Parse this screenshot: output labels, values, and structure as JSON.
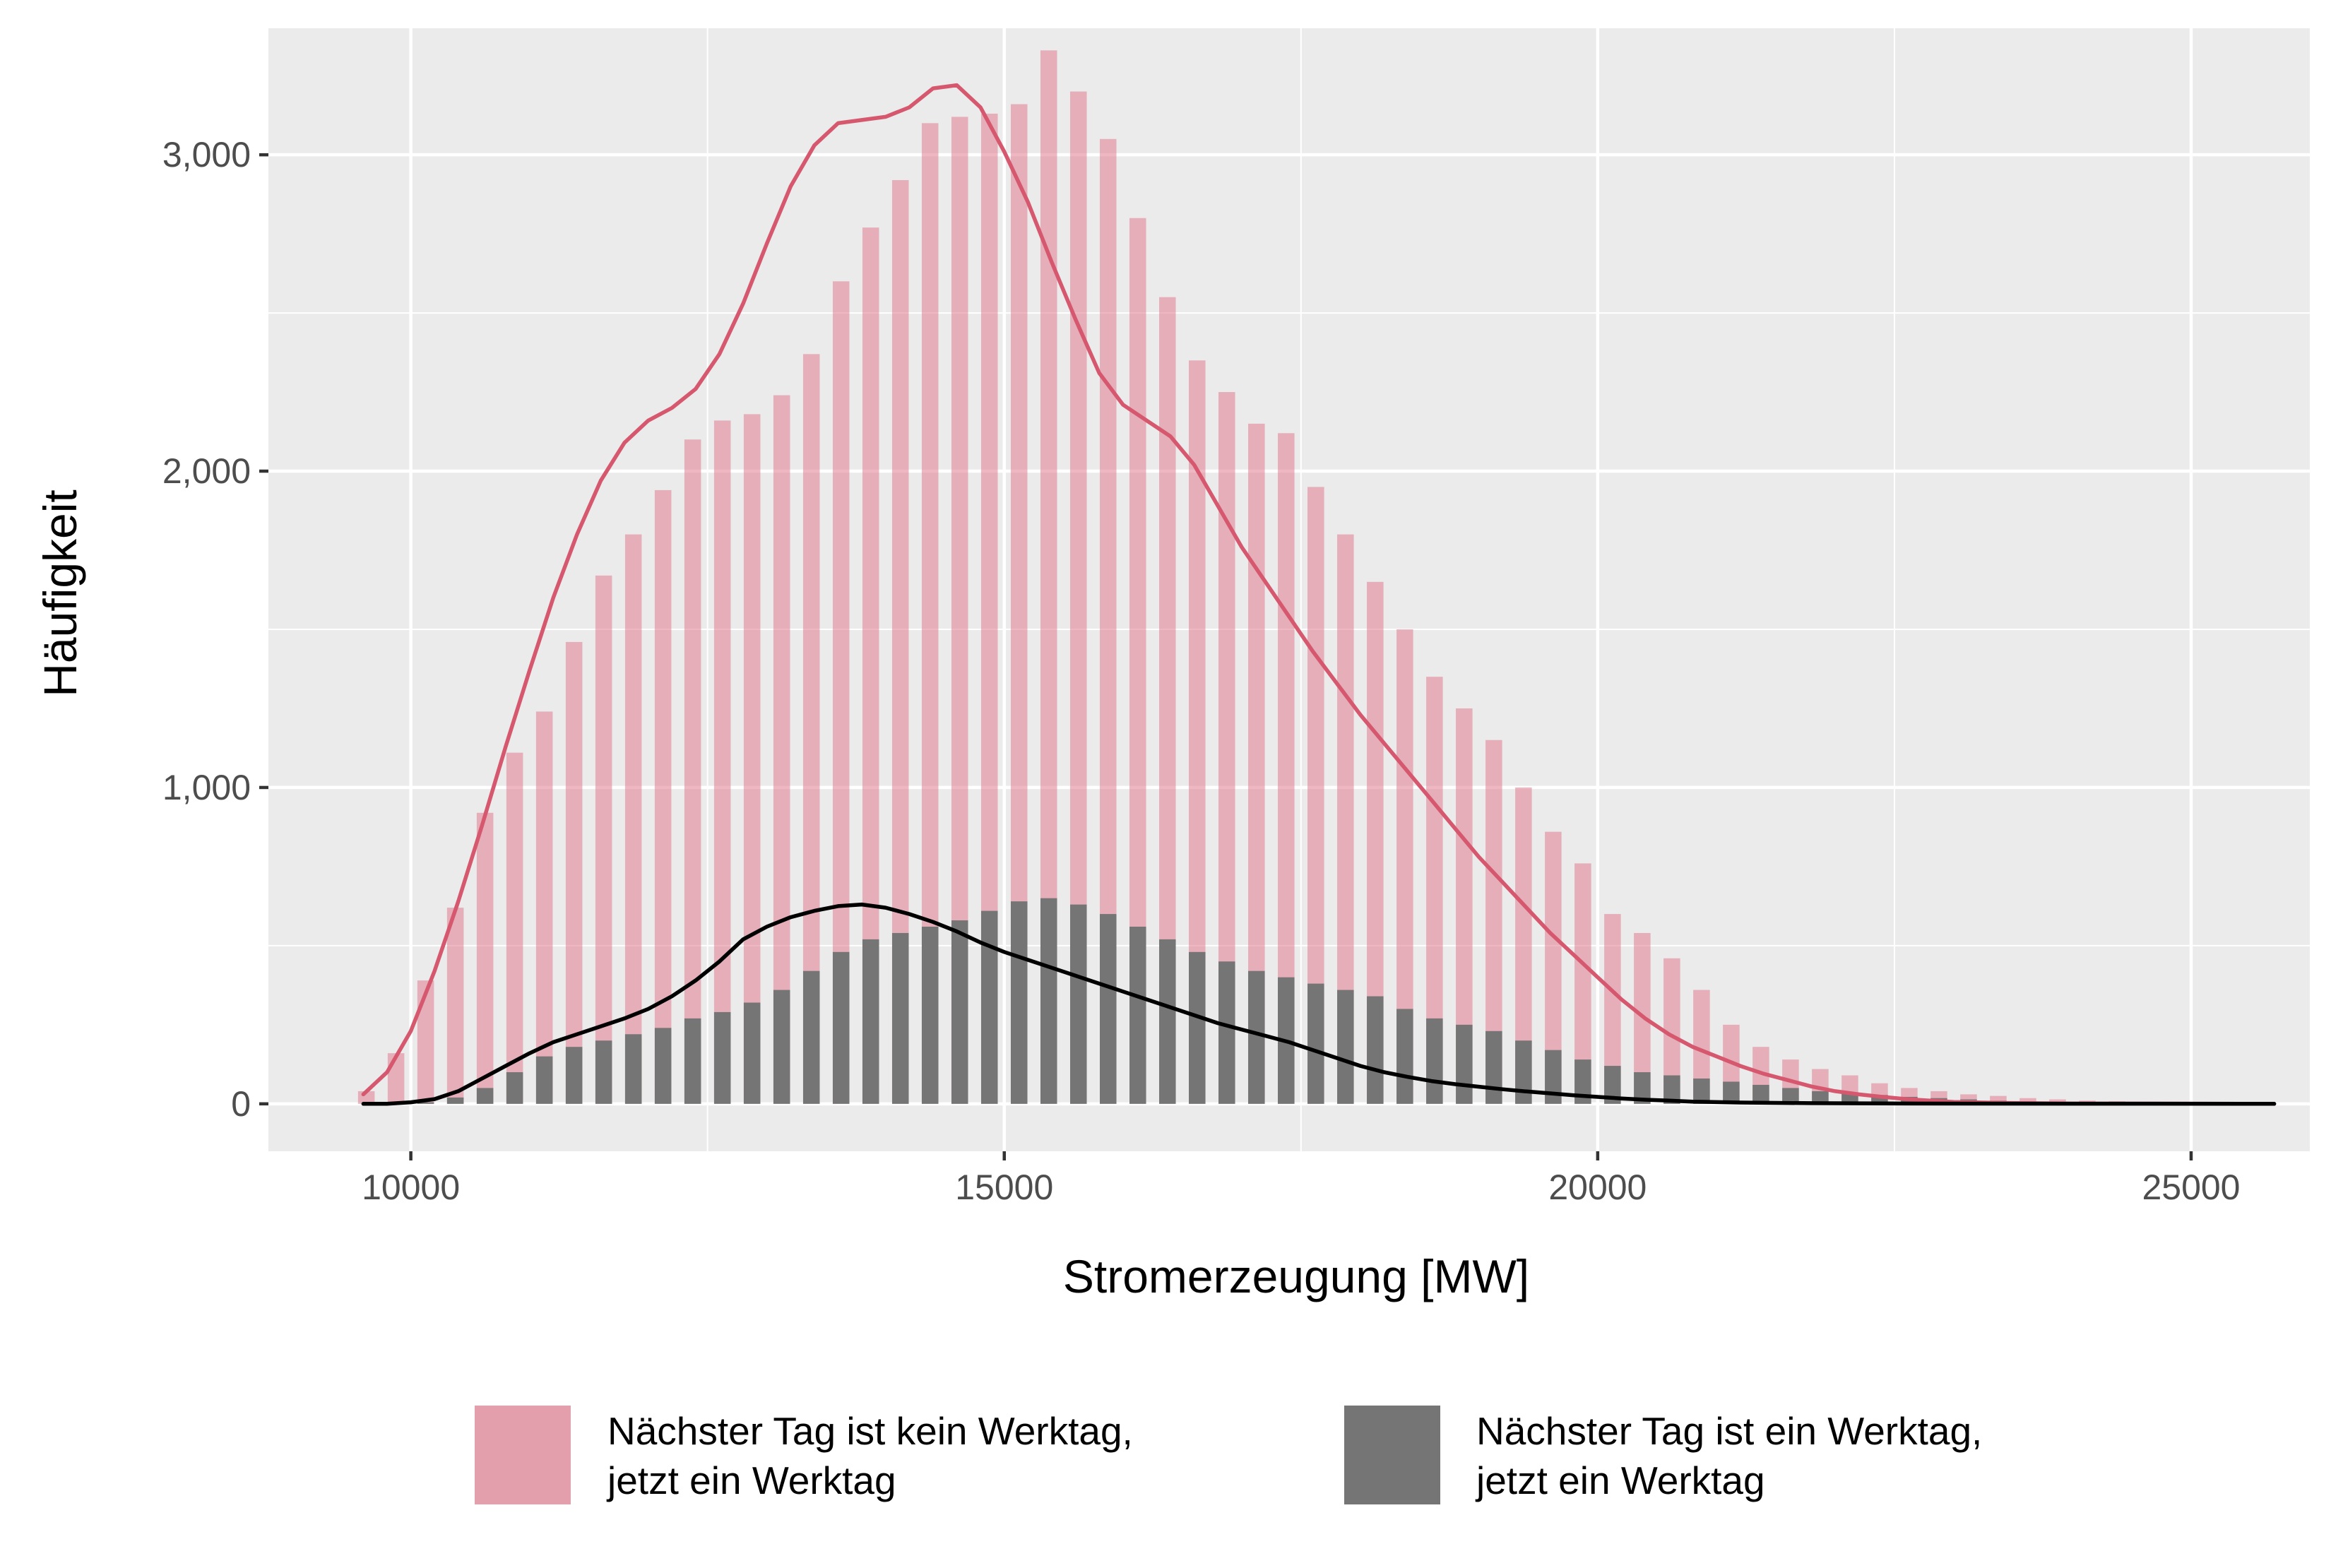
{
  "chart_data": {
    "type": "bar",
    "title": "",
    "xlabel": "Stromerzeugung [MW]",
    "ylabel": "Häufigkeit",
    "xlim": [
      8800,
      26000
    ],
    "ylim": [
      -150,
      3400
    ],
    "x_ticks": [
      {
        "value": 10000,
        "label": "10000"
      },
      {
        "value": 15000,
        "label": "15000"
      },
      {
        "value": 20000,
        "label": "20000"
      },
      {
        "value": 25000,
        "label": "25000"
      }
    ],
    "y_ticks": [
      {
        "value": 0,
        "label": "0"
      },
      {
        "value": 1000,
        "label": "1,000"
      },
      {
        "value": 2000,
        "label": "2,000"
      },
      {
        "value": 3000,
        "label": "3,000"
      }
    ],
    "grid": true,
    "legend_position": "bottom",
    "bin_width": 250,
    "x": [
      9625,
      9875,
      10125,
      10375,
      10625,
      10875,
      11125,
      11375,
      11625,
      11875,
      12125,
      12375,
      12625,
      12875,
      13125,
      13375,
      13625,
      13875,
      14125,
      14375,
      14625,
      14875,
      15125,
      15375,
      15625,
      15875,
      16125,
      16375,
      16625,
      16875,
      17125,
      17375,
      17625,
      17875,
      18125,
      18375,
      18625,
      18875,
      19125,
      19375,
      19625,
      19875,
      20125,
      20375,
      20625,
      20875,
      21125,
      21375,
      21625,
      21875,
      22125,
      22375,
      22625,
      22875,
      23125,
      23375,
      23625,
      23875,
      24125,
      24375,
      24625,
      24875,
      25125,
      25375
    ],
    "series": [
      {
        "name": "Nächster Tag ist kein Werktag, jetzt ein Werktag",
        "color": "#e07b8f",
        "values": [
          40,
          160,
          390,
          620,
          920,
          1110,
          1240,
          1460,
          1670,
          1800,
          1940,
          2100,
          2160,
          2180,
          2240,
          2370,
          2600,
          2770,
          2920,
          3100,
          3120,
          3130,
          3160,
          3330,
          3200,
          3050,
          2800,
          2550,
          2350,
          2250,
          2150,
          2120,
          1950,
          1800,
          1650,
          1500,
          1350,
          1250,
          1150,
          1000,
          860,
          760,
          600,
          540,
          460,
          360,
          250,
          180,
          140,
          110,
          90,
          65,
          50,
          40,
          30,
          25,
          18,
          14,
          10,
          8,
          6,
          5,
          4,
          3
        ]
      },
      {
        "name": "Nächster Tag ist ein Werktag, jetzt ein Werktag",
        "color": "#757575",
        "values": [
          0,
          0,
          5,
          20,
          50,
          100,
          150,
          180,
          200,
          220,
          240,
          270,
          290,
          320,
          360,
          420,
          480,
          520,
          540,
          560,
          580,
          610,
          640,
          650,
          630,
          600,
          560,
          520,
          480,
          450,
          420,
          400,
          380,
          360,
          340,
          300,
          270,
          250,
          230,
          200,
          170,
          140,
          120,
          100,
          90,
          80,
          70,
          60,
          50,
          40,
          35,
          28,
          22,
          18,
          14,
          10,
          8,
          6,
          5,
          4,
          3,
          2,
          1,
          1
        ]
      }
    ],
    "density_curves": [
      {
        "series": "Nächster Tag ist kein Werktag, jetzt ein Werktag",
        "color": "#d6586f",
        "points": [
          [
            9600,
            30
          ],
          [
            9800,
            100
          ],
          [
            10000,
            230
          ],
          [
            10200,
            420
          ],
          [
            10400,
            640
          ],
          [
            10600,
            880
          ],
          [
            10800,
            1130
          ],
          [
            11000,
            1370
          ],
          [
            11200,
            1600
          ],
          [
            11400,
            1800
          ],
          [
            11600,
            1970
          ],
          [
            11800,
            2090
          ],
          [
            12000,
            2160
          ],
          [
            12200,
            2200
          ],
          [
            12400,
            2260
          ],
          [
            12600,
            2370
          ],
          [
            12800,
            2530
          ],
          [
            13000,
            2720
          ],
          [
            13200,
            2900
          ],
          [
            13400,
            3030
          ],
          [
            13600,
            3100
          ],
          [
            13800,
            3110
          ],
          [
            14000,
            3120
          ],
          [
            14200,
            3150
          ],
          [
            14400,
            3210
          ],
          [
            14600,
            3220
          ],
          [
            14800,
            3150
          ],
          [
            15000,
            3010
          ],
          [
            15200,
            2850
          ],
          [
            15400,
            2660
          ],
          [
            15600,
            2480
          ],
          [
            15800,
            2310
          ],
          [
            16000,
            2210
          ],
          [
            16200,
            2160
          ],
          [
            16400,
            2110
          ],
          [
            16600,
            2020
          ],
          [
            16800,
            1890
          ],
          [
            17000,
            1760
          ],
          [
            17200,
            1650
          ],
          [
            17400,
            1540
          ],
          [
            17600,
            1430
          ],
          [
            17800,
            1330
          ],
          [
            18000,
            1230
          ],
          [
            18200,
            1140
          ],
          [
            18400,
            1050
          ],
          [
            18600,
            960
          ],
          [
            18800,
            870
          ],
          [
            19000,
            780
          ],
          [
            19200,
            700
          ],
          [
            19400,
            620
          ],
          [
            19600,
            540
          ],
          [
            19800,
            470
          ],
          [
            20000,
            400
          ],
          [
            20200,
            330
          ],
          [
            20400,
            270
          ],
          [
            20600,
            220
          ],
          [
            20800,
            180
          ],
          [
            21000,
            150
          ],
          [
            21200,
            120
          ],
          [
            21400,
            95
          ],
          [
            21600,
            75
          ],
          [
            21800,
            55
          ],
          [
            22000,
            40
          ],
          [
            22200,
            30
          ],
          [
            22400,
            22
          ],
          [
            22600,
            15
          ],
          [
            22800,
            10
          ],
          [
            23000,
            6
          ],
          [
            23400,
            3
          ],
          [
            24000,
            1
          ],
          [
            25700,
            0
          ]
        ]
      },
      {
        "series": "Nächster Tag ist ein Werktag, jetzt ein Werktag",
        "color": "#000000",
        "points": [
          [
            9600,
            0
          ],
          [
            9800,
            0
          ],
          [
            10000,
            5
          ],
          [
            10200,
            15
          ],
          [
            10400,
            40
          ],
          [
            10600,
            80
          ],
          [
            10800,
            120
          ],
          [
            11000,
            160
          ],
          [
            11200,
            195
          ],
          [
            11400,
            220
          ],
          [
            11600,
            245
          ],
          [
            11800,
            270
          ],
          [
            12000,
            300
          ],
          [
            12200,
            340
          ],
          [
            12400,
            390
          ],
          [
            12600,
            450
          ],
          [
            12800,
            520
          ],
          [
            13000,
            560
          ],
          [
            13200,
            590
          ],
          [
            13400,
            610
          ],
          [
            13600,
            625
          ],
          [
            13800,
            630
          ],
          [
            14000,
            620
          ],
          [
            14200,
            600
          ],
          [
            14400,
            575
          ],
          [
            14600,
            545
          ],
          [
            14800,
            510
          ],
          [
            15000,
            480
          ],
          [
            15200,
            455
          ],
          [
            15400,
            430
          ],
          [
            15600,
            405
          ],
          [
            15800,
            380
          ],
          [
            16000,
            355
          ],
          [
            16200,
            330
          ],
          [
            16400,
            305
          ],
          [
            16600,
            280
          ],
          [
            16800,
            255
          ],
          [
            17000,
            235
          ],
          [
            17200,
            215
          ],
          [
            17400,
            195
          ],
          [
            17600,
            170
          ],
          [
            17800,
            145
          ],
          [
            18000,
            120
          ],
          [
            18200,
            100
          ],
          [
            18400,
            85
          ],
          [
            18600,
            72
          ],
          [
            18800,
            62
          ],
          [
            19000,
            54
          ],
          [
            19200,
            46
          ],
          [
            19400,
            39
          ],
          [
            19600,
            33
          ],
          [
            19800,
            27
          ],
          [
            20000,
            22
          ],
          [
            20200,
            17
          ],
          [
            20400,
            13
          ],
          [
            20600,
            10
          ],
          [
            20800,
            7
          ],
          [
            21200,
            4
          ],
          [
            21800,
            2
          ],
          [
            22600,
            1
          ],
          [
            25700,
            0
          ]
        ]
      }
    ]
  },
  "legend": {
    "items": [
      {
        "line1": "Nächster Tag ist kein Werktag,",
        "line2": "jetzt ein Werktag",
        "color": "#e3a0ac"
      },
      {
        "line1": "Nächster Tag ist ein Werktag,",
        "line2": "jetzt ein Werktag",
        "color": "#757575"
      }
    ]
  }
}
